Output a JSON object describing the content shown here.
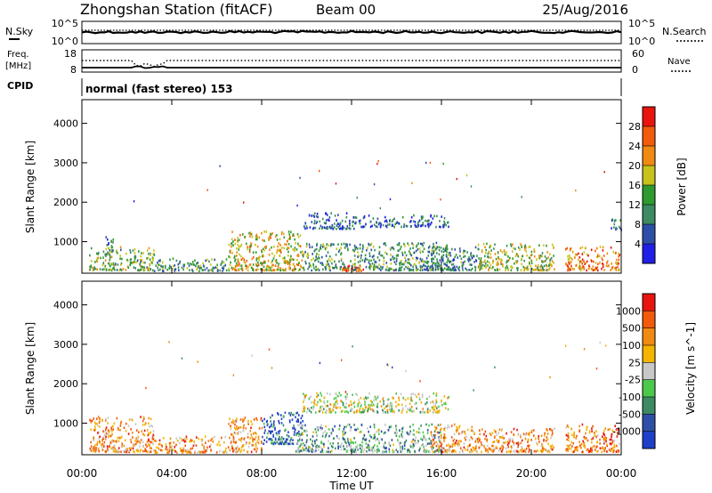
{
  "header": {
    "title": "Zhongshan Station (fitACF)",
    "beam": "Beam 00",
    "date": "25/Aug/2016"
  },
  "nsky_panel": {
    "label": "N.Sky",
    "left_ticks": [
      "10^5",
      "10^0"
    ],
    "right_ticks": [
      "10^5",
      "10^0"
    ],
    "legend": "N.Search"
  },
  "freq_panel": {
    "label_line1": "Freq.",
    "label_line2": "[MHz]",
    "left_ticks": [
      "18",
      "8"
    ],
    "right_ticks": [
      "60",
      "0"
    ],
    "legend": "Nave"
  },
  "cpid_panel": {
    "label": "CPID",
    "text": "normal (fast stereo) 153"
  },
  "colors": {
    "power_scale": [
      "#1f1fe8",
      "#2e4fa8",
      "#3d8a63",
      "#2f9a2f",
      "#c7c21c",
      "#f08a12",
      "#f25a0c",
      "#e8140e"
    ],
    "velocity_scale": [
      "#e8140e",
      "#f25a0c",
      "#f08a12",
      "#f5b400",
      "#c8c8c8",
      "#4cc84c",
      "#3d8a63",
      "#2e4fa8",
      "#1f3fc8"
    ]
  },
  "chart_data": [
    {
      "type": "heatmap",
      "name": "power",
      "ylabel": "Slant Range [km]",
      "yticks": [
        "1000",
        "2000",
        "3000",
        "4000"
      ],
      "ylim": [
        200,
        4600
      ],
      "xlim_hours": [
        0,
        24
      ],
      "colorbar_label": "Power [dB]",
      "colorbar_ticks": [
        "4",
        "8",
        "12",
        "16",
        "20",
        "24",
        "28"
      ],
      "colorbar_range": [
        0,
        32
      ],
      "clusters": [
        {
          "t0": 0.3,
          "t1": 3.2,
          "r0": 300,
          "r1": 900,
          "level": 0.45
        },
        {
          "t0": 1.0,
          "t1": 1.4,
          "r0": 700,
          "r1": 1200,
          "level": 0.3
        },
        {
          "t0": 3.2,
          "t1": 6.5,
          "r0": 280,
          "r1": 600,
          "level": 0.35
        },
        {
          "t0": 6.5,
          "t1": 9.8,
          "r0": 300,
          "r1": 1300,
          "level": 0.6
        },
        {
          "t0": 9.8,
          "t1": 16.5,
          "r0": 300,
          "r1": 1000,
          "level": 0.35
        },
        {
          "t0": 9.8,
          "t1": 12.2,
          "r0": 1350,
          "r1": 1750,
          "level": 0.2
        },
        {
          "t0": 12.3,
          "t1": 16.3,
          "r0": 1400,
          "r1": 1700,
          "level": 0.22
        },
        {
          "t0": 11.5,
          "t1": 12.5,
          "r0": 280,
          "r1": 500,
          "level": 0.85
        },
        {
          "t0": 15.3,
          "t1": 17.6,
          "r0": 300,
          "r1": 900,
          "level": 0.3
        },
        {
          "t0": 17.6,
          "t1": 21.0,
          "r0": 300,
          "r1": 1000,
          "level": 0.5
        },
        {
          "t0": 21.5,
          "t1": 23.9,
          "r0": 300,
          "r1": 900,
          "level": 0.75
        },
        {
          "t0": 23.5,
          "t1": 24.0,
          "r0": 1300,
          "r1": 1600,
          "level": 0.2
        }
      ]
    },
    {
      "type": "heatmap",
      "name": "velocity",
      "ylabel": "Slant Range [km]",
      "yticks": [
        "1000",
        "2000",
        "3000",
        "4000"
      ],
      "ylim": [
        200,
        4600
      ],
      "xlim_hours": [
        0,
        24
      ],
      "colorbar_label": "Velocity [m s^-1]",
      "colorbar_ticks": [
        "1000",
        "500",
        "100",
        "25",
        "-25",
        "-100",
        "-500",
        "-1000"
      ],
      "colorbar_range": [
        -1000,
        1000
      ],
      "clusters": [
        {
          "t0": 0.3,
          "t1": 3.2,
          "r0": 300,
          "r1": 1200,
          "level": 0.3
        },
        {
          "t0": 3.2,
          "t1": 6.5,
          "r0": 280,
          "r1": 700,
          "level": 0.3
        },
        {
          "t0": 6.5,
          "t1": 8.0,
          "r0": 300,
          "r1": 1200,
          "level": 0.3
        },
        {
          "t0": 8.0,
          "t1": 9.8,
          "r0": 500,
          "r1": 1300,
          "level": 0.85
        },
        {
          "t0": 9.5,
          "t1": 16.0,
          "r0": 300,
          "r1": 1000,
          "level": 0.65
        },
        {
          "t0": 9.8,
          "t1": 16.3,
          "r0": 1300,
          "r1": 1800,
          "level": 0.5
        },
        {
          "t0": 15.5,
          "t1": 17.5,
          "r0": 300,
          "r1": 1000,
          "level": 0.3
        },
        {
          "t0": 17.5,
          "t1": 21.0,
          "r0": 300,
          "r1": 900,
          "level": 0.3
        },
        {
          "t0": 21.5,
          "t1": 23.9,
          "r0": 300,
          "r1": 1000,
          "level": 0.25
        }
      ]
    }
  ],
  "x_axis": {
    "ticks": [
      "00:00",
      "04:00",
      "08:00",
      "12:00",
      "16:00",
      "20:00",
      "00:00"
    ],
    "label": "Time UT"
  }
}
